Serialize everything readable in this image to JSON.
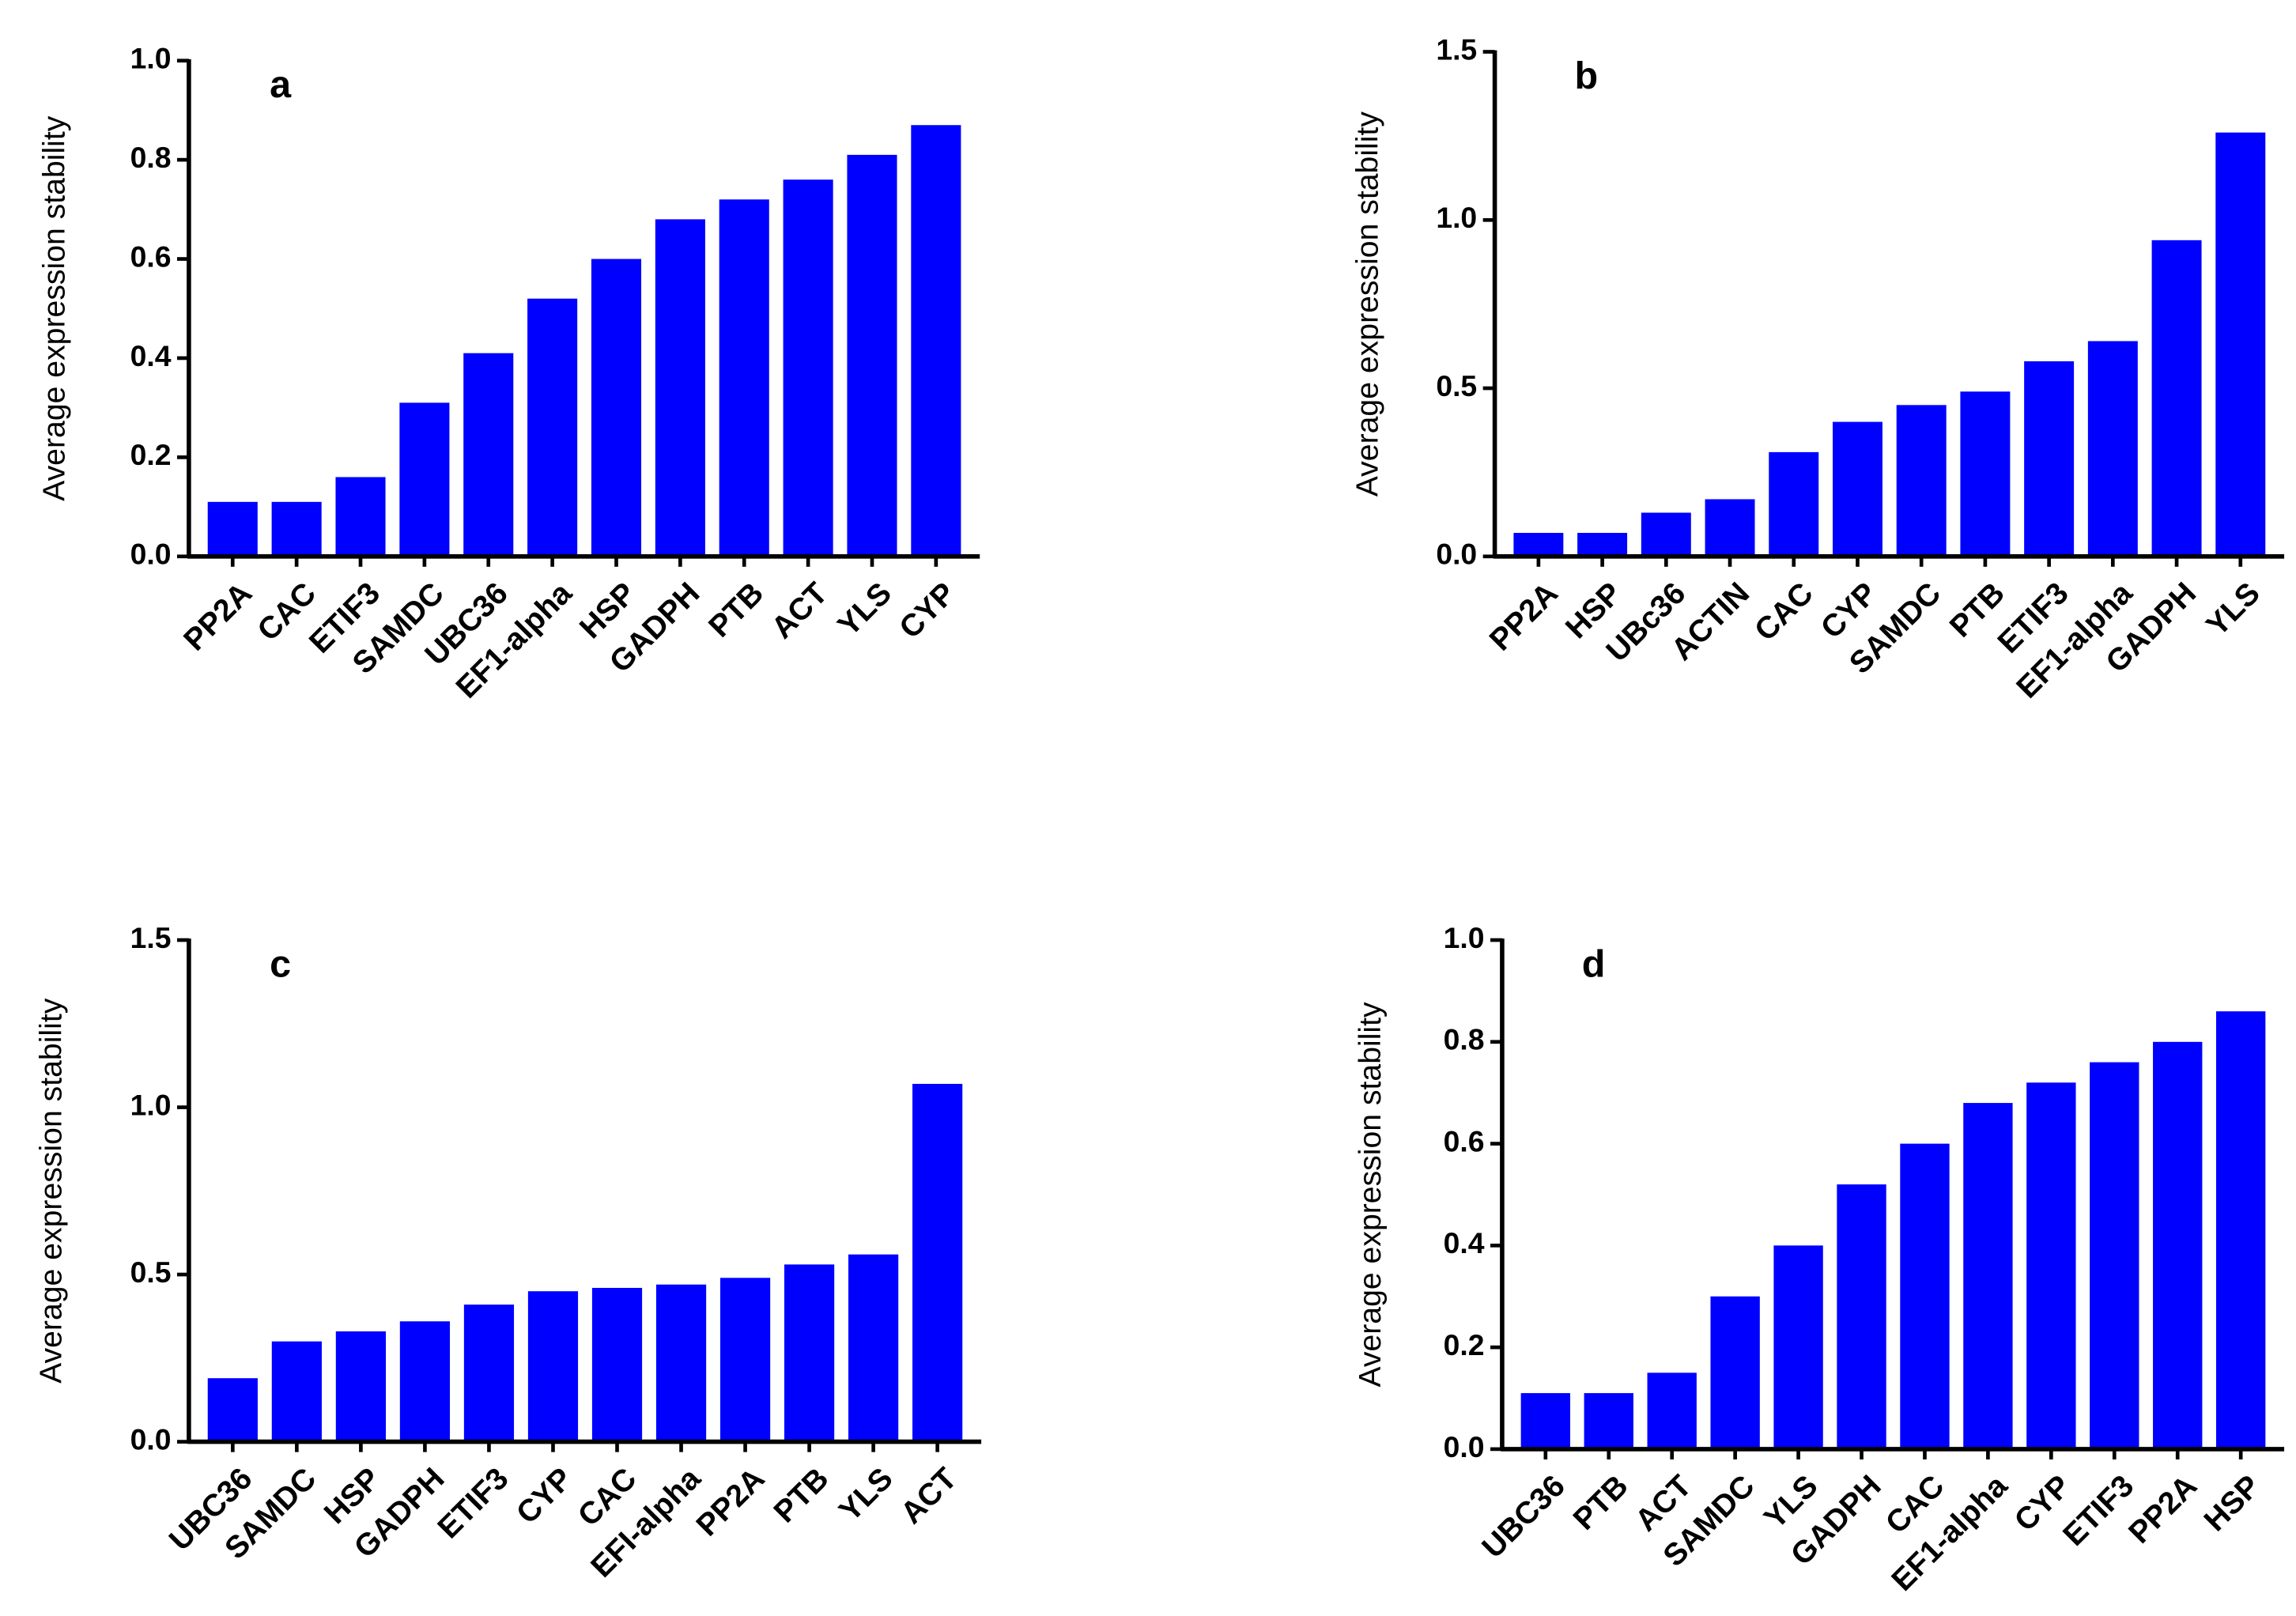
{
  "chart_data": [
    {
      "type": "bar",
      "panel_label": "a",
      "ylabel": "Average expression stability",
      "color": "#0000ff",
      "categories": [
        "PP2A",
        "CAC",
        "ETIF3",
        "SAMDC",
        "UBC36",
        "EF1-alpha",
        "HSP",
        "GADPH",
        "PTB",
        "ACT",
        "YLS",
        "CYP"
      ],
      "values": [
        0.11,
        0.11,
        0.16,
        0.31,
        0.41,
        0.52,
        0.6,
        0.68,
        0.72,
        0.76,
        0.81,
        0.87
      ],
      "ylim": [
        0,
        1.0
      ],
      "yticks": [
        {
          "value": 0,
          "label": "0.0"
        },
        {
          "value": 0.2,
          "label": "0.2"
        },
        {
          "value": 0.4,
          "label": "0.4"
        },
        {
          "value": 0.6,
          "label": "0.6"
        },
        {
          "value": 0.8,
          "label": "0.8"
        },
        {
          "value": 1.0,
          "label": "1.0"
        }
      ]
    },
    {
      "type": "bar",
      "panel_label": "b",
      "ylabel": "Average expression stability",
      "color": "#0000ff",
      "categories": [
        "PP2A",
        "HSP",
        "UBc36",
        "ACTIN",
        "CAC",
        "CYP",
        "SAMDC",
        "PTB",
        "ETIF3",
        "EF1-alpha",
        "GADPH",
        "YLS"
      ],
      "values": [
        0.07,
        0.07,
        0.13,
        0.17,
        0.31,
        0.4,
        0.45,
        0.49,
        0.58,
        0.64,
        0.94,
        1.26
      ],
      "ylim": [
        0,
        1.5
      ],
      "yticks": [
        {
          "value": 0,
          "label": "0.0"
        },
        {
          "value": 0.5,
          "label": "0.5"
        },
        {
          "value": 1.0,
          "label": "1.0"
        },
        {
          "value": 1.5,
          "label": "1.5"
        }
      ]
    },
    {
      "type": "bar",
      "panel_label": "c",
      "ylabel": "Average expression stability",
      "color": "#0000ff",
      "categories": [
        "UBC36",
        "SAMDC",
        "HSP",
        "GADPH",
        "ETIF3",
        "CYP",
        "CAC",
        "EFI-alpha",
        "PP2A",
        "PTB",
        "YLS",
        "ACT"
      ],
      "values": [
        0.19,
        0.3,
        0.33,
        0.36,
        0.41,
        0.45,
        0.46,
        0.47,
        0.49,
        0.53,
        0.56,
        1.07
      ],
      "ylim": [
        0,
        1.5
      ],
      "yticks": [
        {
          "value": 0,
          "label": "0.0"
        },
        {
          "value": 0.5,
          "label": "0.5"
        },
        {
          "value": 1.0,
          "label": "1.0"
        },
        {
          "value": 1.5,
          "label": "1.5"
        }
      ]
    },
    {
      "type": "bar",
      "panel_label": "d",
      "ylabel": "Average expression stability",
      "color": "#0000ff",
      "categories": [
        "UBC36",
        "PTB",
        "ACT",
        "SAMDC",
        "YLS",
        "GADPH",
        "CAC",
        "EF1-alpha",
        "CYP",
        "ETIF3",
        "PP2A",
        "HSP"
      ],
      "values": [
        0.11,
        0.11,
        0.15,
        0.3,
        0.4,
        0.52,
        0.6,
        0.68,
        0.72,
        0.76,
        0.8,
        0.86
      ],
      "ylim": [
        0,
        1.0
      ],
      "yticks": [
        {
          "value": 0,
          "label": "0.0"
        },
        {
          "value": 0.2,
          "label": "0.2"
        },
        {
          "value": 0.4,
          "label": "0.4"
        },
        {
          "value": 0.6,
          "label": "0.6"
        },
        {
          "value": 0.8,
          "label": "0.8"
        },
        {
          "value": 1.0,
          "label": "1.0"
        }
      ]
    }
  ]
}
